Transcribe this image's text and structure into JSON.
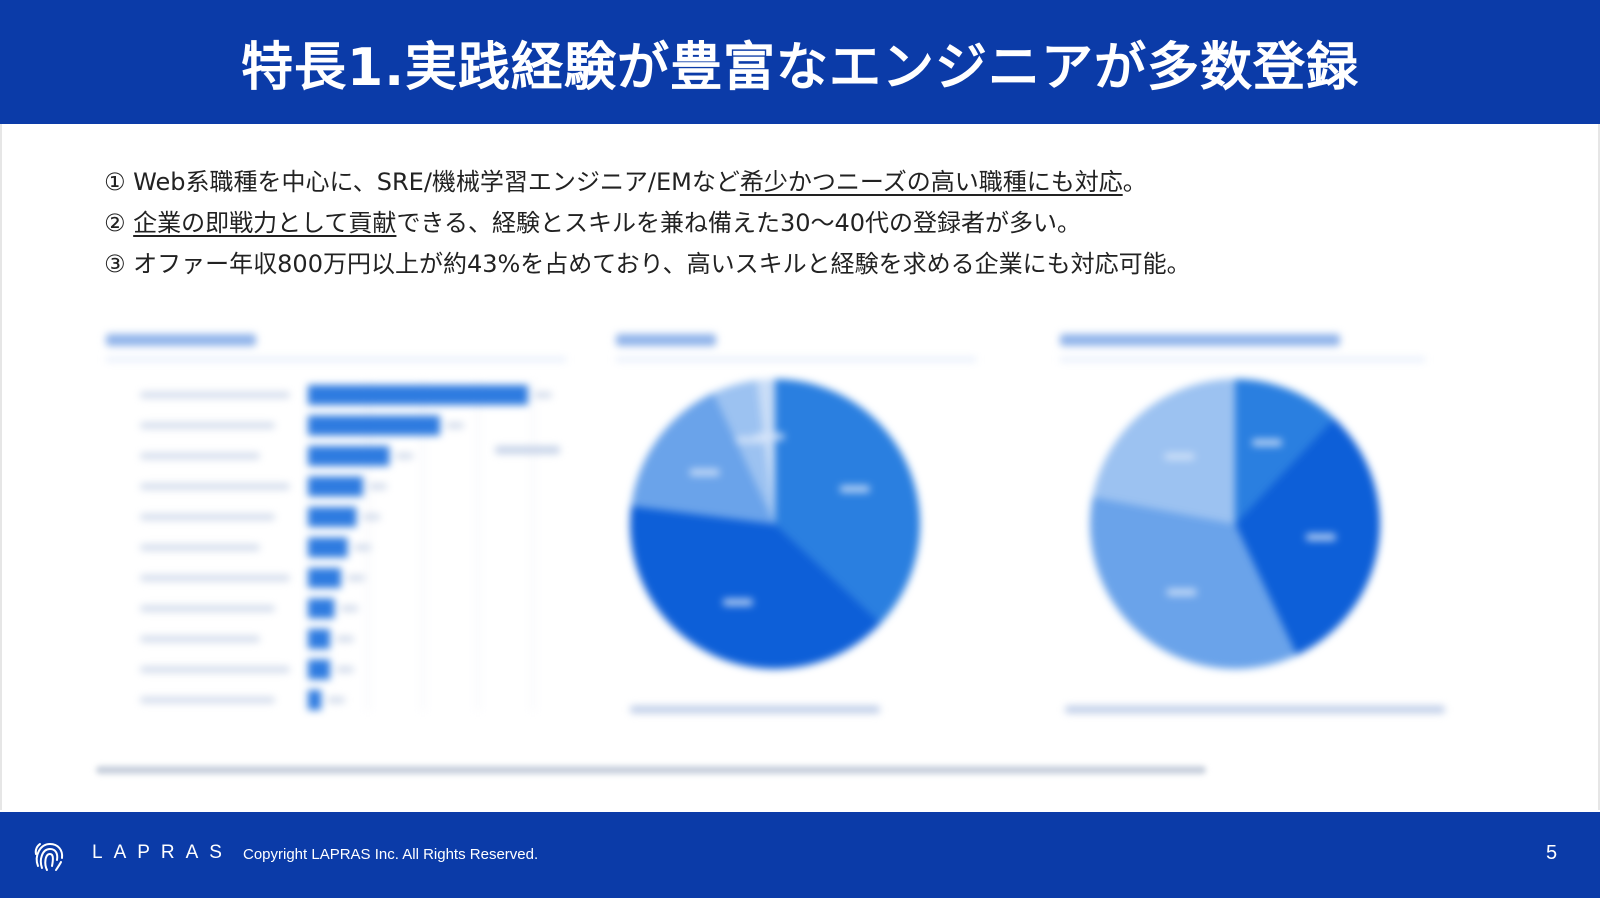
{
  "header": {
    "title": "特長1.実践経験が豊富なエンジニアが多数登録"
  },
  "points": [
    {
      "num": "①",
      "pre": "Web系職種を中心に、SRE/機械学習エンジニア/EMなど",
      "emph": "希少かつニーズの高い職種にも対応",
      "post": "。"
    },
    {
      "num": "②",
      "pre": "",
      "emph": "企業の即戦力として貢献",
      "post": "できる、経験とスキルを兼ね備えた30〜40代の登録者が多い。"
    },
    {
      "num": "③",
      "pre": "オファー年収800万円以上が約43%を占めており、高いスキルと経験を求める企業にも対応可能。",
      "emph": "",
      "post": ""
    }
  ],
  "charts": {
    "bar": {
      "fill": "#2e7be0",
      "values": [
        100,
        60,
        37,
        25,
        22,
        18,
        15,
        12,
        10,
        10,
        6
      ]
    },
    "pie_left": {
      "colors": [
        "#2a7fe0",
        "#0d5fd8",
        "#6aa3ea",
        "#9cc2f1",
        "#c9ddf7"
      ],
      "values": [
        37,
        40,
        16,
        5,
        2
      ]
    },
    "pie_right": {
      "colors": [
        "#2a7fe0",
        "#0d5fd8",
        "#6aa3ea",
        "#9cc2f1"
      ],
      "values": [
        12,
        31,
        35,
        22
      ]
    }
  },
  "footer": {
    "brand": "LAPRAS",
    "copyright": "Copyright LAPRAS Inc. All Rights Reserved.",
    "page_number": "5"
  },
  "colors": {
    "primary": "#0b3ba8",
    "text": "#222222"
  }
}
